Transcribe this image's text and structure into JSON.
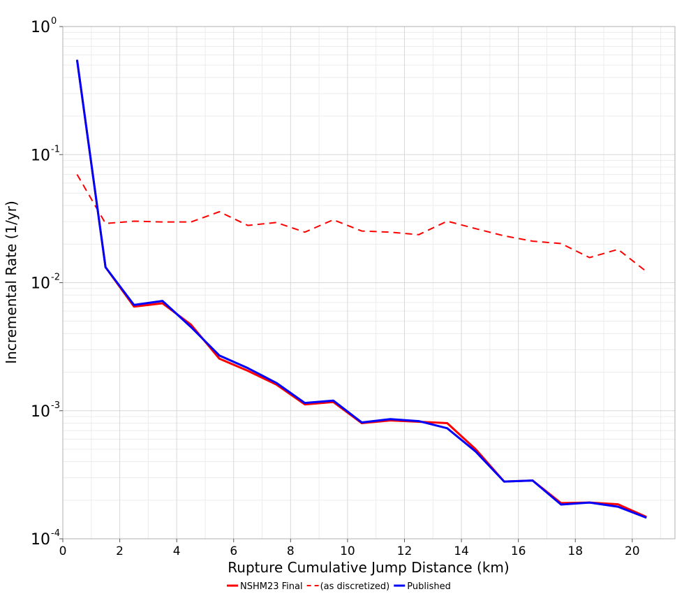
{
  "chart_data": {
    "type": "line",
    "title": "",
    "xlabel": "Rupture Cumulative Jump Distance (km)",
    "ylabel": "Incremental Rate (1/yr)",
    "xlim": [
      0,
      21.5
    ],
    "ylim": [
      0.0001,
      1
    ],
    "yscale": "log",
    "grid": true,
    "legend_position": "bottom-center",
    "x_ticks": [
      0,
      2,
      4,
      6,
      8,
      10,
      12,
      14,
      16,
      18,
      20
    ],
    "y_ticks": [
      {
        "value": 1,
        "base": "10",
        "exp": "0"
      },
      {
        "value": 0.1,
        "base": "10",
        "exp": "-1"
      },
      {
        "value": 0.01,
        "base": "10",
        "exp": "-2"
      },
      {
        "value": 0.001,
        "base": "10",
        "exp": "-3"
      },
      {
        "value": 0.0001,
        "base": "10",
        "exp": "-4"
      }
    ],
    "x": [
      0.5,
      1.5,
      2.5,
      3.5,
      4.5,
      5.5,
      6.5,
      7.5,
      8.5,
      9.5,
      10.5,
      11.5,
      12.5,
      13.5,
      14.5,
      15.5,
      16.5,
      17.5,
      18.5,
      19.5,
      20.5
    ],
    "series": [
      {
        "name": "NSHM23 Final",
        "color": "#ff0000",
        "style": "solid",
        "values": [
          0.55,
          0.0132,
          0.0065,
          0.0069,
          0.0047,
          0.00255,
          0.00205,
          0.0016,
          0.00112,
          0.00117,
          0.0008,
          0.00084,
          0.00082,
          0.0008,
          0.0005,
          0.00028,
          0.000285,
          0.00019,
          0.000192,
          0.000186,
          0.000148
        ]
      },
      {
        "name": "(as discretized)",
        "color": "#ff0000",
        "style": "dashed",
        "values": [
          0.07,
          0.029,
          0.0302,
          0.0298,
          0.0298,
          0.0358,
          0.028,
          0.0295,
          0.0248,
          0.031,
          0.0253,
          0.0248,
          0.0237,
          0.0302,
          0.0264,
          0.0232,
          0.0211,
          0.0202,
          0.0157,
          0.0182,
          0.0122
        ]
      },
      {
        "name": "Published",
        "color": "#0000ff",
        "style": "solid",
        "values": [
          0.55,
          0.0132,
          0.0067,
          0.0072,
          0.0045,
          0.0027,
          0.00215,
          0.00165,
          0.00115,
          0.0012,
          0.00081,
          0.00086,
          0.00083,
          0.00073,
          0.00048,
          0.00028,
          0.000285,
          0.000185,
          0.000192,
          0.000178,
          0.000146
        ]
      }
    ]
  }
}
